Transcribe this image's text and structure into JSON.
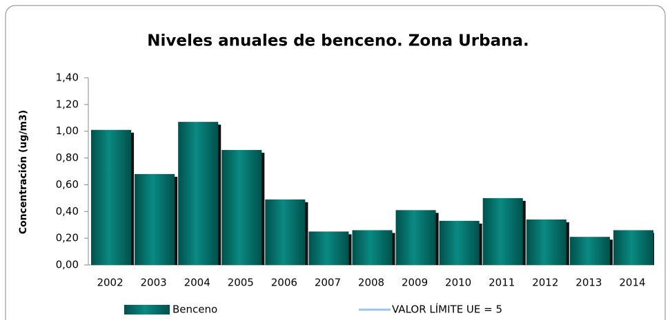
{
  "chart_data": {
    "type": "bar",
    "title": "Niveles anuales de benceno. Zona Urbana.",
    "y_label": "Concentración (ug/m3)",
    "categories": [
      "2002",
      "2003",
      "2004",
      "2005",
      "2006",
      "2007",
      "2008",
      "2009",
      "2010",
      "2011",
      "2012",
      "2013",
      "2014"
    ],
    "series": [
      {
        "name": "Benceno",
        "color": "#007a73",
        "values": [
          1.01,
          0.68,
          1.07,
          0.86,
          0.49,
          0.25,
          0.26,
          0.41,
          0.33,
          0.5,
          0.34,
          0.21,
          0.26
        ]
      },
      {
        "name": "VALOR LÍMITE UE = 5",
        "color": "#9dc3e6",
        "type": "line",
        "values": [
          5,
          5,
          5,
          5,
          5,
          5,
          5,
          5,
          5,
          5,
          5,
          5,
          5
        ]
      }
    ],
    "ylim": [
      0,
      1.4
    ],
    "yticks": [
      {
        "value": 0,
        "label": "0,00"
      },
      {
        "value": 0.2,
        "label": "0,20"
      },
      {
        "value": 0.4,
        "label": "0,40"
      },
      {
        "value": 0.6,
        "label": "0,60"
      },
      {
        "value": 0.8,
        "label": "0,80"
      },
      {
        "value": 1.0,
        "label": "1,00"
      },
      {
        "value": 1.2,
        "label": "1,20"
      },
      {
        "value": 1.4,
        "label": "1,40"
      }
    ]
  }
}
